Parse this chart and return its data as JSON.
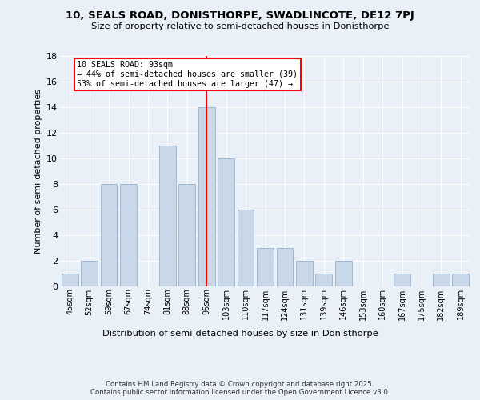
{
  "title1": "10, SEALS ROAD, DONISTHORPE, SWADLINCOTE, DE12 7PJ",
  "title2": "Size of property relative to semi-detached houses in Donisthorpe",
  "xlabel": "Distribution of semi-detached houses by size in Donisthorpe",
  "ylabel": "Number of semi-detached properties",
  "categories": [
    "45sqm",
    "52sqm",
    "59sqm",
    "67sqm",
    "74sqm",
    "81sqm",
    "88sqm",
    "95sqm",
    "103sqm",
    "110sqm",
    "117sqm",
    "124sqm",
    "131sqm",
    "139sqm",
    "146sqm",
    "153sqm",
    "160sqm",
    "167sqm",
    "175sqm",
    "182sqm",
    "189sqm"
  ],
  "values": [
    1,
    2,
    8,
    8,
    0,
    11,
    8,
    14,
    10,
    6,
    3,
    3,
    2,
    1,
    2,
    0,
    0,
    1,
    0,
    1,
    1
  ],
  "bar_color": "#c8d8e8",
  "bar_edge_color": "#a0b8d0",
  "highlight_index": 7,
  "vline_x": 7.0,
  "annotation_title": "10 SEALS ROAD: 93sqm",
  "annotation_line1": "← 44% of semi-detached houses are smaller (39)",
  "annotation_line2": "53% of semi-detached houses are larger (47) →",
  "ylim": [
    0,
    18
  ],
  "yticks": [
    0,
    2,
    4,
    6,
    8,
    10,
    12,
    14,
    16,
    18
  ],
  "footer": "Contains HM Land Registry data © Crown copyright and database right 2025.\nContains public sector information licensed under the Open Government Licence v3.0.",
  "bg_color": "#eaf0f8",
  "plot_bg_color": "#eaf0f8"
}
